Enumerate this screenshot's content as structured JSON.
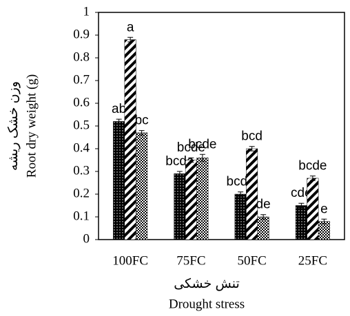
{
  "chart_data": {
    "type": "bar",
    "y_label": [
      "وزن خشک ریشه",
      "Root dry weight  (g)"
    ],
    "x_label": [
      "تنش خشکی",
      "Drought stress"
    ],
    "categories": [
      "100FC",
      "75FC",
      "50FC",
      "25FC"
    ],
    "series": [
      {
        "color": "#000000",
        "pattern": "dots",
        "values": [
          0.52,
          0.29,
          0.2,
          0.15
        ],
        "errors": [
          0.01,
          0.01,
          0.01,
          0.01
        ],
        "letters": [
          "ab",
          "bcde",
          "bcde",
          "cde"
        ]
      },
      {
        "color": "#000000",
        "pattern": "stripes",
        "values": [
          0.88,
          0.35,
          0.4,
          0.27
        ],
        "errors": [
          0.01,
          0.01,
          0.01,
          0.01
        ],
        "letters": [
          "a",
          "bcde",
          "bcd",
          "bcde"
        ]
      },
      {
        "color": "#000000",
        "pattern": "checks",
        "values": [
          0.47,
          0.36,
          0.1,
          0.08
        ],
        "errors": [
          0.01,
          0.015,
          0.01,
          0.01
        ],
        "letters": [
          "bc",
          "bcde",
          "de",
          "e"
        ]
      }
    ],
    "ylim": [
      0,
      1
    ],
    "yticks": [
      0,
      0.1,
      0.2,
      0.3,
      0.4,
      0.5,
      0.6,
      0.7,
      0.8,
      0.9,
      1
    ]
  }
}
